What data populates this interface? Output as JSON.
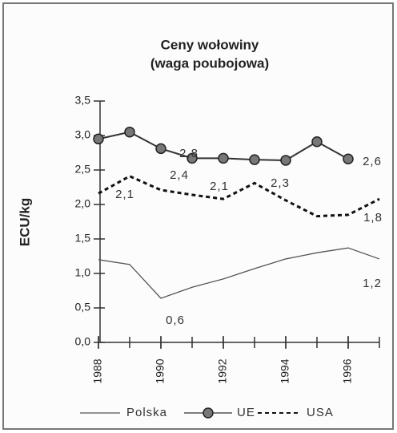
{
  "chart_data": {
    "type": "line",
    "title": "Ceny wołowiny",
    "subtitle": "(waga poubojowa)",
    "y_label": "ECU/kg",
    "x": [
      1988,
      1989,
      1990,
      1991,
      1992,
      1993,
      1994,
      1995,
      1996,
      1997
    ],
    "xlim": [
      1988,
      1997
    ],
    "xticks": [
      1988,
      1990,
      1992,
      1994,
      1996
    ],
    "ylim": [
      0,
      3.5
    ],
    "yticks": [
      {
        "value": 0,
        "label": "0,0"
      },
      {
        "value": 0.5,
        "label": "0,5"
      },
      {
        "value": 1,
        "label": "1,0"
      },
      {
        "value": 1.5,
        "label": "1,5"
      },
      {
        "value": 2,
        "label": "2,0"
      },
      {
        "value": 2.5,
        "label": "2,5"
      },
      {
        "value": 3,
        "label": "3,0"
      },
      {
        "value": 3.5,
        "label": "3,5"
      }
    ],
    "series": [
      {
        "name": "Polska",
        "color": "#555555",
        "dash": "solid",
        "values": [
          1.2,
          1.13,
          0.64,
          0.8,
          0.92,
          1.07,
          1.21,
          1.3,
          1.37,
          1.21
        ]
      },
      {
        "name": "UE",
        "color": "#333333",
        "dash": "solid",
        "marker": "circle",
        "values": [
          2.95,
          3.05,
          2.81,
          2.67,
          2.67,
          2.65,
          2.64,
          2.91,
          2.66,
          null
        ]
      },
      {
        "name": "USA",
        "color": "#111111",
        "dash": "dotted",
        "values": [
          2.16,
          2.41,
          2.21,
          2.14,
          2.08,
          2.31,
          2.06,
          1.83,
          1.85,
          2.08
        ]
      }
    ],
    "annotations": [
      "2,8",
      "2,6",
      "2,1",
      "2,4",
      "2,1",
      "2,3",
      "1,8",
      "0,6",
      "1,2"
    ]
  }
}
